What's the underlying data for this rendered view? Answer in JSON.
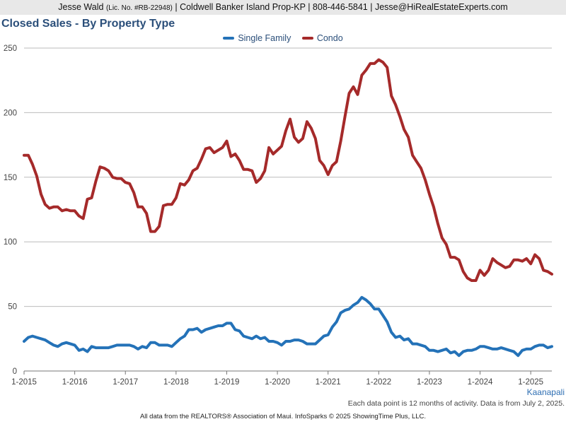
{
  "header": {
    "agent": "Jesse Wald",
    "license": "(Lic. No. #RB-22948)",
    "details": "| Coldwell Banker Island Prop-KP | 808-446-5841 | Jesse@HiRealEstateExperts.com"
  },
  "market": "Kaanapali",
  "note": "Each data point is 12 months of activity. Data is from July 2, 2025.",
  "footer": "All data from the REALTORS® Association of Maui. InfoSparks © 2025 ShowingTime Plus, LLC.",
  "chart_data": {
    "type": "line",
    "title": "Closed Sales - By Property Type",
    "xlabel": "",
    "ylabel": "",
    "ylim": [
      0,
      250
    ],
    "yticks": [
      0,
      50,
      100,
      150,
      200,
      250
    ],
    "xticks": [
      "1-2015",
      "1-2016",
      "1-2017",
      "1-2018",
      "1-2019",
      "1-2020",
      "1-2021",
      "1-2022",
      "1-2023",
      "1-2024",
      "1-2025"
    ],
    "grid": true,
    "legend_position": "top-center",
    "x_start": "2015-01",
    "x_end": "2025-06",
    "x_step": "1 month",
    "series": [
      {
        "name": "Single Family",
        "color": "#2472b8",
        "values": [
          23,
          26,
          27,
          26,
          25,
          24,
          22,
          20,
          19,
          21,
          22,
          21,
          20,
          16,
          17,
          15,
          19,
          18,
          18,
          18,
          18,
          19,
          20,
          20,
          20,
          20,
          19,
          17,
          19,
          18,
          22,
          22,
          20,
          20,
          20,
          19,
          22,
          25,
          27,
          32,
          32,
          33,
          30,
          32,
          33,
          34,
          35,
          35,
          37,
          37,
          32,
          31,
          27,
          26,
          25,
          27,
          25,
          26,
          23,
          23,
          22,
          20,
          23,
          23,
          24,
          24,
          23,
          21,
          21,
          21,
          24,
          27,
          28,
          34,
          38,
          45,
          47,
          48,
          51,
          53,
          57,
          55,
          52,
          48,
          48,
          43,
          38,
          30,
          26,
          27,
          24,
          25,
          21,
          21,
          20,
          19,
          16,
          16,
          15,
          16,
          17,
          14,
          15,
          12,
          15,
          16,
          16,
          17,
          19,
          19,
          18,
          17,
          17,
          18,
          17,
          16,
          15,
          12,
          16,
          17,
          17,
          19,
          20,
          20,
          18,
          19
        ]
      },
      {
        "name": "Condo",
        "color": "#a52a2a",
        "values": [
          167,
          167,
          160,
          151,
          137,
          129,
          126,
          127,
          127,
          124,
          125,
          124,
          124,
          120,
          118,
          133,
          134,
          147,
          158,
          157,
          155,
          150,
          149,
          149,
          146,
          145,
          138,
          127,
          127,
          122,
          108,
          108,
          112,
          128,
          129,
          129,
          134,
          145,
          144,
          148,
          155,
          157,
          164,
          172,
          173,
          169,
          171,
          173,
          178,
          166,
          168,
          163,
          156,
          156,
          155,
          146,
          149,
          155,
          173,
          168,
          171,
          174,
          186,
          195,
          181,
          177,
          180,
          193,
          188,
          180,
          163,
          159,
          152,
          159,
          162,
          178,
          197,
          215,
          220,
          214,
          229,
          233,
          238,
          238,
          241,
          239,
          235,
          213,
          206,
          197,
          187,
          181,
          167,
          162,
          157,
          148,
          137,
          127,
          114,
          103,
          98,
          88,
          88,
          86,
          77,
          72,
          70,
          70,
          78,
          74,
          78,
          87,
          84,
          82,
          80,
          81,
          86,
          86,
          85,
          87,
          83,
          90,
          87,
          78,
          77,
          75
        ]
      }
    ]
  }
}
